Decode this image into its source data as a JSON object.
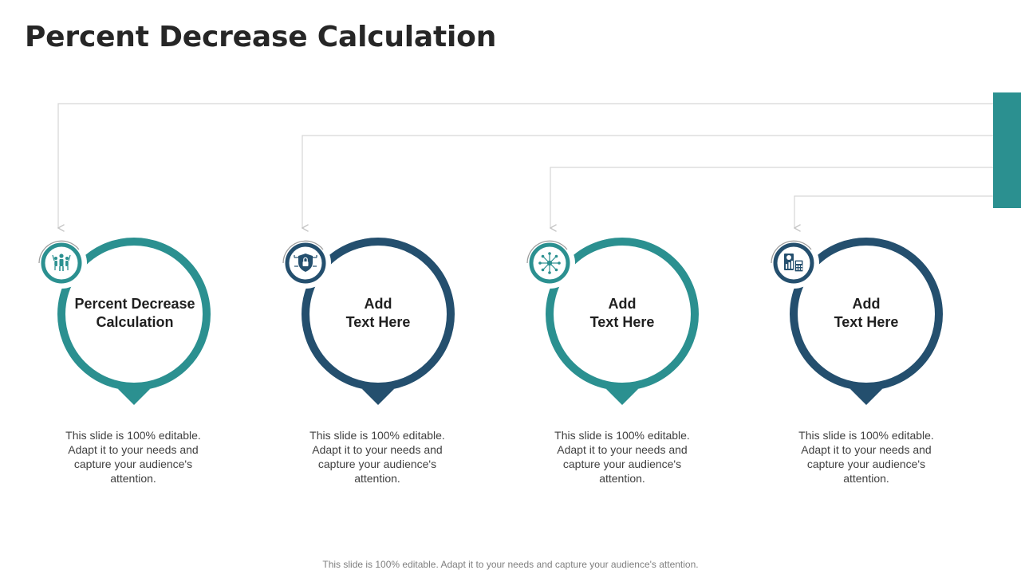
{
  "title": "Percent Decrease Calculation",
  "colors": {
    "teal": "#2b9090",
    "navy": "#244f6e",
    "connector": "#d6d6d6"
  },
  "items": [
    {
      "label_line1": "Percent Decrease",
      "label_line2": "Calculation",
      "color": "teal",
      "icon": "team-icon",
      "description": "This slide is 100% editable. Adapt it to your needs and capture your audience's attention."
    },
    {
      "label_line1": "Add",
      "label_line2": "Text Here",
      "color": "navy",
      "icon": "shield-lock-icon",
      "description": "This slide is 100% editable. Adapt it to your needs and capture your audience's attention."
    },
    {
      "label_line1": "Add",
      "label_line2": "Text Here",
      "color": "teal",
      "icon": "network-icon",
      "description": "This slide is 100% editable. Adapt it to your needs and capture your audience's attention."
    },
    {
      "label_line1": "Add",
      "label_line2": "Text Here",
      "color": "navy",
      "icon": "finance-calculator-icon",
      "description": "This slide is 100% editable. Adapt it to your needs and capture your audience's attention."
    }
  ],
  "footer": "This slide is 100% editable. Adapt it to your needs and capture your audience's attention."
}
